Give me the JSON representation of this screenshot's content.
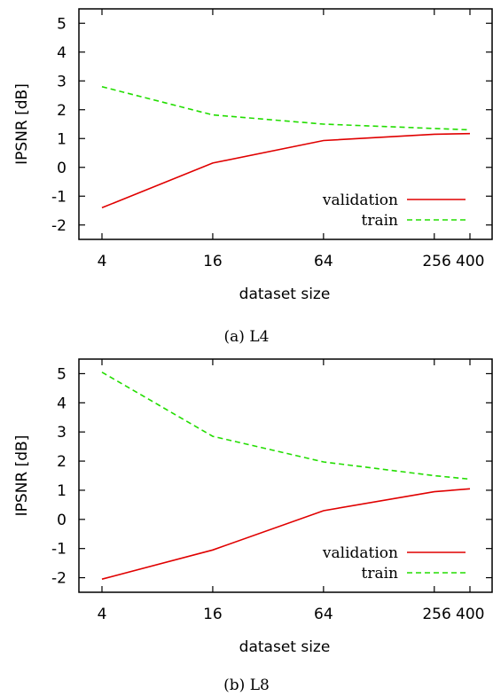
{
  "chart_data": [
    {
      "type": "line",
      "caption": "(a) L4",
      "xlabel": "dataset size",
      "ylabel": "IPSNR [dB]",
      "x_scale": "log2",
      "x_ticks": [
        "4",
        "16",
        "64",
        "256",
        "400"
      ],
      "y_ticks": [
        "5",
        "4",
        "3",
        "2",
        "1",
        "0",
        "-1",
        "-2"
      ],
      "ylim": [
        -2.5,
        5.5
      ],
      "legend_position": "bottom-right",
      "grid": false,
      "x": [
        4,
        16,
        64,
        256,
        400
      ],
      "series": [
        {
          "name": "validation",
          "style": "solid",
          "color": "#e00000",
          "values": [
            -1.4,
            0.15,
            0.93,
            1.15,
            1.17
          ]
        },
        {
          "name": "train",
          "style": "dashed",
          "color": "#22dd00",
          "values": [
            2.8,
            1.82,
            1.5,
            1.35,
            1.3
          ]
        }
      ]
    },
    {
      "type": "line",
      "caption": "(b) L8",
      "xlabel": "dataset size",
      "ylabel": "IPSNR [dB]",
      "x_scale": "log2",
      "x_ticks": [
        "4",
        "16",
        "64",
        "256",
        "400"
      ],
      "y_ticks": [
        "5",
        "4",
        "3",
        "2",
        "1",
        "0",
        "-1",
        "-2"
      ],
      "ylim": [
        -2.5,
        5.5
      ],
      "legend_position": "bottom-right",
      "grid": false,
      "x": [
        4,
        16,
        64,
        256,
        400
      ],
      "series": [
        {
          "name": "validation",
          "style": "solid",
          "color": "#e00000",
          "values": [
            -2.05,
            -1.05,
            0.3,
            0.95,
            1.05
          ]
        },
        {
          "name": "train",
          "style": "dashed",
          "color": "#22dd00",
          "values": [
            5.05,
            2.85,
            1.97,
            1.5,
            1.38
          ]
        }
      ]
    }
  ]
}
